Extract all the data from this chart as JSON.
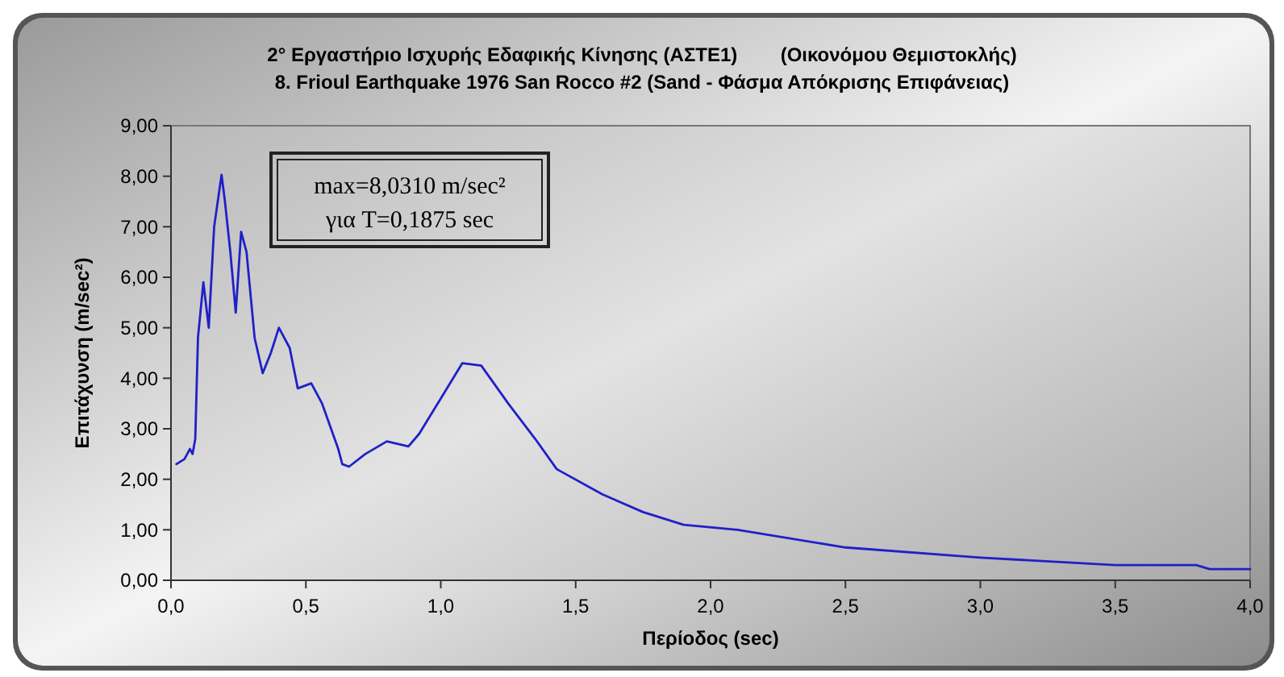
{
  "chart_data": {
    "type": "line",
    "title": "2° Εργαστήριο Ισχυρής Εδαφικής Κίνησης (ΑΣΤΕ1)        (Οικονόμου Θεμιστοκλής)",
    "subtitle": "8. Frioul Earthquake 1976 San Rocco #2 (Sand - Φάσμα Απόκρισης Επιφάνειας)",
    "xlabel": "Περίοδος (sec)",
    "ylabel": "Επιτάχυνση (m/sec²)",
    "annotations": [
      "max=8,0310 m/sec²",
      "για T=0,1875 sec"
    ],
    "x": [
      0.02,
      0.05,
      0.07,
      0.08,
      0.09,
      0.1,
      0.12,
      0.14,
      0.16,
      0.1875,
      0.2,
      0.22,
      0.24,
      0.26,
      0.28,
      0.31,
      0.34,
      0.37,
      0.4,
      0.44,
      0.47,
      0.52,
      0.56,
      0.62,
      0.635,
      0.66,
      0.72,
      0.8,
      0.88,
      0.92,
      1.0,
      1.08,
      1.15,
      1.25,
      1.35,
      1.43,
      1.6,
      1.75,
      1.9,
      2.1,
      2.5,
      3.0,
      3.5,
      3.8,
      3.85,
      4.0
    ],
    "series": [
      {
        "color": "#2020c8",
        "values": [
          2.3,
          2.4,
          2.6,
          2.5,
          2.8,
          4.8,
          5.9,
          5.0,
          7.0,
          8.03,
          7.5,
          6.5,
          5.3,
          6.9,
          6.5,
          4.8,
          4.1,
          4.5,
          5.0,
          4.6,
          3.8,
          3.9,
          3.5,
          2.6,
          2.3,
          2.25,
          2.5,
          2.75,
          2.65,
          2.9,
          3.6,
          4.3,
          4.25,
          3.5,
          2.8,
          2.2,
          1.7,
          1.35,
          1.1,
          1.0,
          0.65,
          0.45,
          0.3,
          0.3,
          0.22,
          0.22
        ]
      }
    ],
    "xlim": [
      0,
      4
    ],
    "ylim": [
      0,
      9
    ],
    "xticks": [
      {
        "value": 0,
        "label": "0,0"
      },
      {
        "value": 0.5,
        "label": "0,5"
      },
      {
        "value": 1,
        "label": "1,0"
      },
      {
        "value": 1.5,
        "label": "1,5"
      },
      {
        "value": 2,
        "label": "2,0"
      },
      {
        "value": 2.5,
        "label": "2,5"
      },
      {
        "value": 3,
        "label": "3,0"
      },
      {
        "value": 3.5,
        "label": "3,5"
      },
      {
        "value": 4,
        "label": "4,0"
      }
    ],
    "yticks": [
      {
        "value": 0,
        "label": "0,00"
      },
      {
        "value": 1,
        "label": "1,00"
      },
      {
        "value": 2,
        "label": "2,00"
      },
      {
        "value": 3,
        "label": "3,00"
      },
      {
        "value": 4,
        "label": "4,00"
      },
      {
        "value": 5,
        "label": "5,00"
      },
      {
        "value": 6,
        "label": "6,00"
      },
      {
        "value": 7,
        "label": "7,00"
      },
      {
        "value": 8,
        "label": "8,00"
      },
      {
        "value": 9,
        "label": "9,00"
      }
    ],
    "grid": false,
    "marker": "none",
    "line_style": "solid"
  }
}
